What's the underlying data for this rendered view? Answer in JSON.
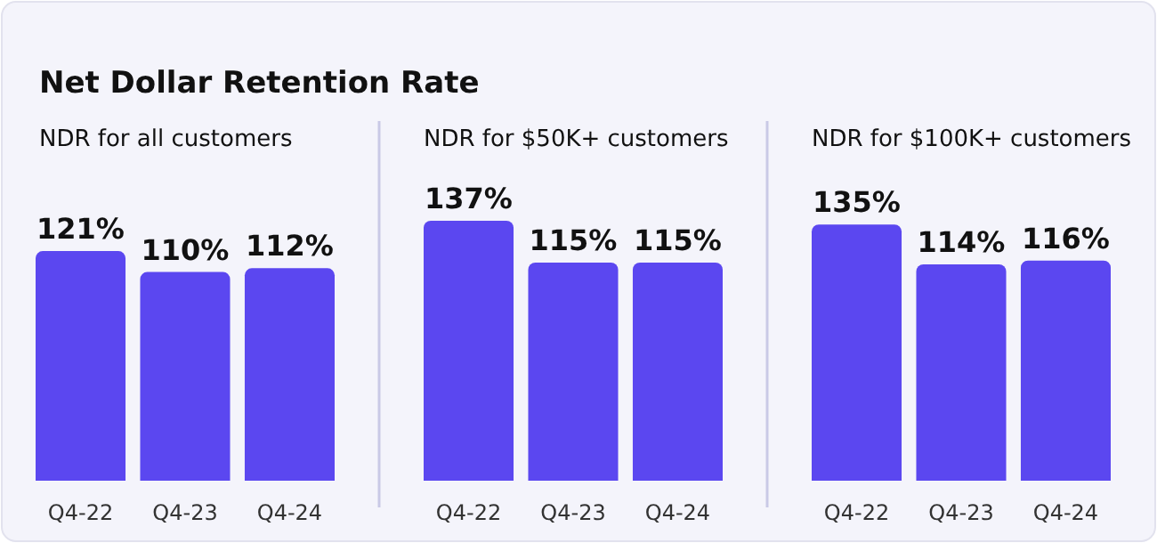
{
  "chart_data": [
    {
      "type": "bar",
      "title": "Net Dollar Retention Rate",
      "subtitle": "NDR for all customers",
      "categories": [
        "Q4-22",
        "Q4-23",
        "Q4-24"
      ],
      "values": [
        121,
        110,
        112
      ],
      "value_labels": [
        "121%",
        "110%",
        "112%"
      ],
      "color": "#5b47f0"
    },
    {
      "type": "bar",
      "subtitle": "NDR for $50K+ customers",
      "categories": [
        "Q4-22",
        "Q4-23",
        "Q4-24"
      ],
      "values": [
        137,
        115,
        115
      ],
      "value_labels": [
        "137%",
        "115%",
        "115%"
      ],
      "color": "#5b47f0"
    },
    {
      "type": "bar",
      "subtitle": "NDR for $100K+ customers",
      "categories": [
        "Q4-22",
        "Q4-23",
        "Q4-24"
      ],
      "values": [
        135,
        114,
        116
      ],
      "value_labels": [
        "135%",
        "114%",
        "116%"
      ],
      "color": "#5b47f0"
    }
  ]
}
